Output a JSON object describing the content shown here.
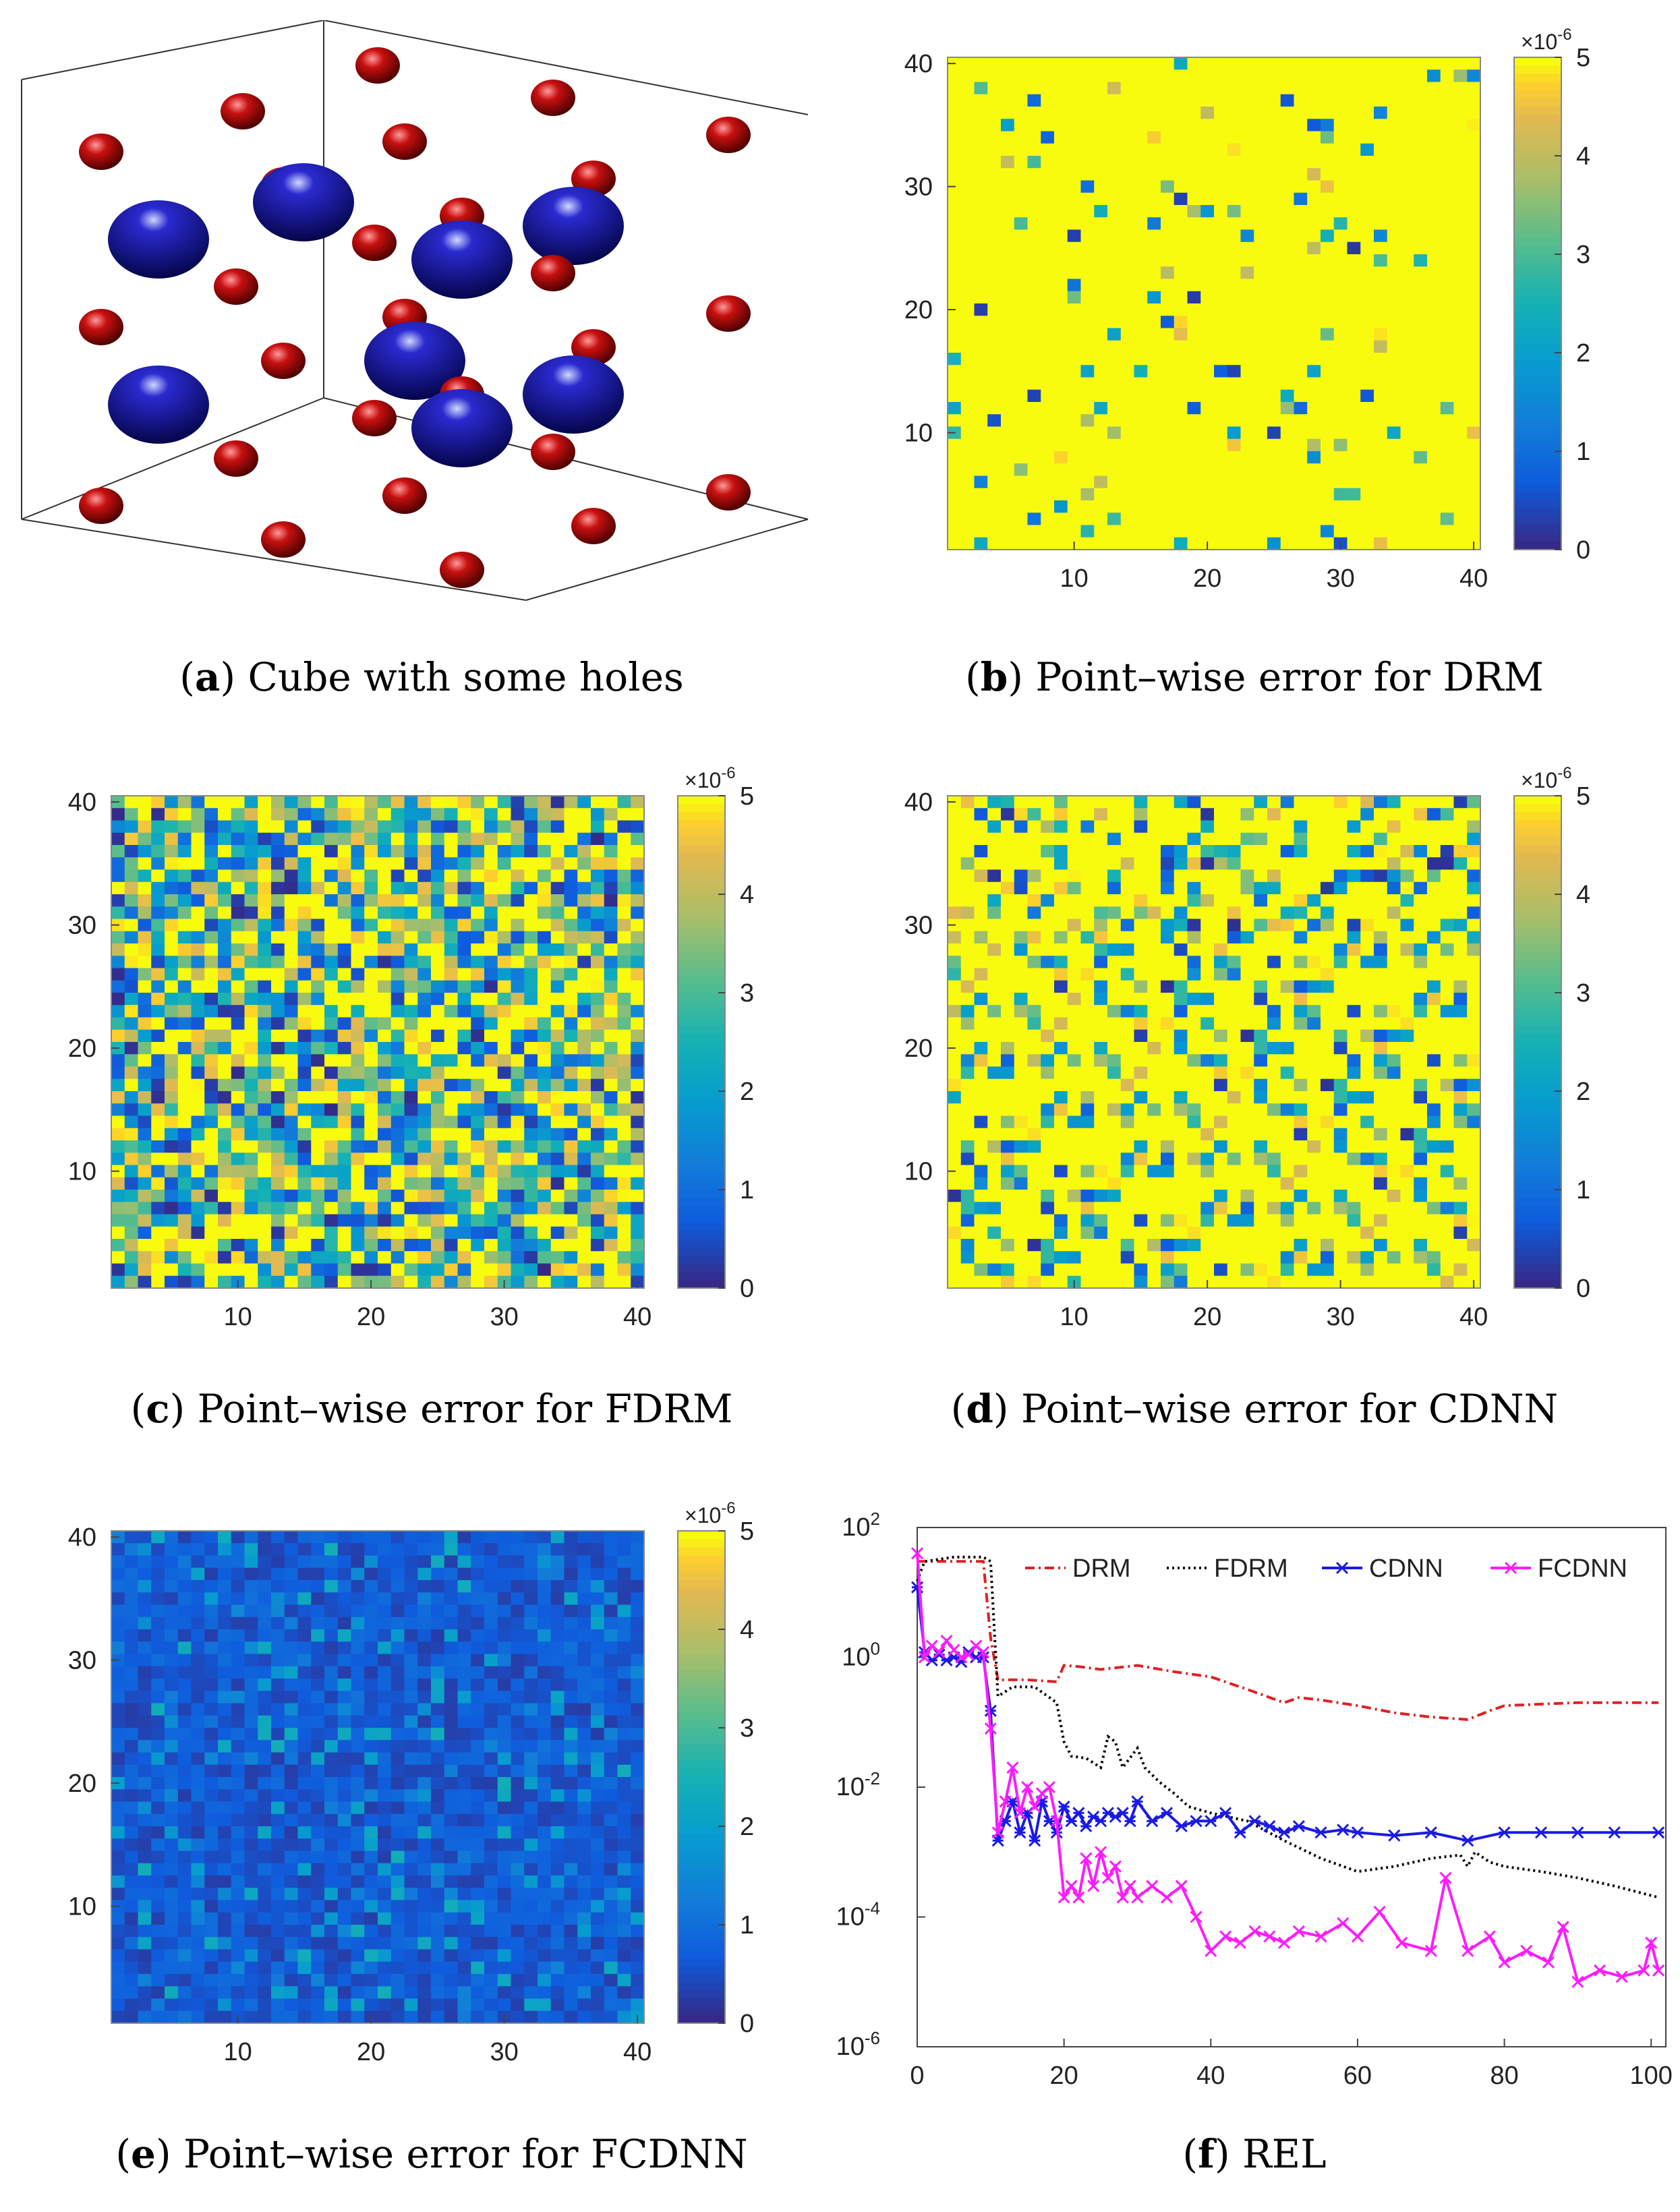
{
  "captions": {
    "a": {
      "letter": "a",
      "text": "Cube with some holes"
    },
    "b": {
      "letter": "b",
      "text": "Point–wise error for DRM"
    },
    "c": {
      "letter": "c",
      "text": "Point–wise error for FDRM"
    },
    "d": {
      "letter": "d",
      "text": "Point–wise error for CDNN"
    },
    "e": {
      "letter": "e",
      "text": "Point–wise error for FCDNN"
    },
    "f": {
      "letter": "f",
      "text": "REL"
    }
  },
  "colors": {
    "sphere_red": "#b00000",
    "sphere_blue": "#0a0a8c",
    "drm": "#e02020",
    "fdrm": "#000000",
    "cdnn": "#1a1ae6",
    "fcdnn": "#ff1aff"
  },
  "chart_data": [
    {
      "id": "a",
      "type": "other",
      "title": "Cube with some holes",
      "description_counts": {
        "red_spheres": 27,
        "blue_spheres": 8
      }
    },
    {
      "id": "b",
      "type": "heatmap",
      "title": "Point–wise error for DRM",
      "grid": [
        40,
        40
      ],
      "xlim": [
        0.5,
        40.5
      ],
      "ylim": [
        0.5,
        40.5
      ],
      "xticks": [
        "10",
        "20",
        "30",
        "40"
      ],
      "yticks": [
        "10",
        "20",
        "30",
        "40"
      ],
      "colorbar": {
        "ticks": [
          "0",
          "1",
          "2",
          "3",
          "4",
          "5"
        ],
        "exponent_label": "×10",
        "exponent": "-6",
        "range": [
          0,
          5
        ]
      },
      "fraction_saturated": 0.92
    },
    {
      "id": "c",
      "type": "heatmap",
      "title": "Point–wise error for FDRM",
      "grid": [
        40,
        40
      ],
      "xlim": [
        0.5,
        40.5
      ],
      "ylim": [
        0.5,
        40.5
      ],
      "xticks": [
        "10",
        "20",
        "30",
        "40"
      ],
      "yticks": [
        "10",
        "20",
        "30",
        "40"
      ],
      "colorbar": {
        "ticks": [
          "0",
          "1",
          "2",
          "3",
          "4",
          "5"
        ],
        "exponent_label": "×10",
        "exponent": "-6",
        "range": [
          0,
          5
        ]
      },
      "fraction_saturated": 0.25
    },
    {
      "id": "d",
      "type": "heatmap",
      "title": "Point–wise error for CDNN",
      "grid": [
        40,
        40
      ],
      "xlim": [
        0.5,
        40.5
      ],
      "ylim": [
        0.5,
        40.5
      ],
      "xticks": [
        "10",
        "20",
        "30",
        "40"
      ],
      "yticks": [
        "10",
        "20",
        "30",
        "40"
      ],
      "colorbar": {
        "ticks": [
          "0",
          "1",
          "2",
          "3",
          "4",
          "5"
        ],
        "exponent_label": "×10",
        "exponent": "-6",
        "range": [
          0,
          5
        ]
      },
      "fraction_saturated": 0.7
    },
    {
      "id": "e",
      "type": "heatmap",
      "title": "Point–wise error for FCDNN",
      "grid": [
        40,
        40
      ],
      "xlim": [
        0.5,
        40.5
      ],
      "ylim": [
        0.5,
        40.5
      ],
      "xticks": [
        "10",
        "20",
        "30",
        "40"
      ],
      "yticks": [
        "10",
        "20",
        "30",
        "40"
      ],
      "colorbar": {
        "ticks": [
          "0",
          "1",
          "2",
          "3",
          "4",
          "5"
        ],
        "exponent_label": "×10",
        "exponent": "-6",
        "range": [
          0,
          5
        ]
      },
      "fraction_saturated": 0.0
    },
    {
      "id": "f",
      "type": "line",
      "title": "REL",
      "yscale": "log",
      "xlim": [
        0,
        102
      ],
      "ylim_exp": [
        -6,
        2
      ],
      "xticks": [
        0,
        20,
        40,
        60,
        80,
        100
      ],
      "ytick_exponents": [
        -6,
        -4,
        -2,
        0,
        2
      ],
      "ytick_base": "10",
      "legend": {
        "placement": "top",
        "entries": [
          "DRM",
          "FDRM",
          "CDNN",
          "FCDNN"
        ]
      },
      "series": [
        {
          "name": "DRM",
          "x": [
            0,
            1,
            5,
            9,
            10,
            11,
            15,
            19,
            20,
            22,
            25,
            30,
            35,
            40,
            45,
            50,
            52,
            55,
            60,
            65,
            70,
            75,
            78,
            80,
            85,
            90,
            95,
            101
          ],
          "y": [
            30,
            30,
            30,
            30,
            2,
            0.45,
            0.45,
            0.42,
            0.75,
            0.72,
            0.65,
            0.75,
            0.6,
            0.5,
            0.32,
            0.2,
            0.24,
            0.22,
            0.18,
            0.14,
            0.12,
            0.11,
            0.15,
            0.18,
            0.19,
            0.2,
            0.2,
            0.2
          ]
        },
        {
          "name": "FDRM",
          "x": [
            0,
            1,
            5,
            9,
            10,
            11,
            13,
            16,
            19,
            20,
            21,
            23,
            25,
            26,
            27,
            28,
            30,
            31,
            33,
            35,
            37,
            40,
            45,
            50,
            55,
            60,
            65,
            70,
            74,
            75,
            76,
            78,
            80,
            85,
            90,
            95,
            101
          ],
          "y": [
            15,
            30,
            35,
            35,
            30,
            0.25,
            0.35,
            0.35,
            0.2,
            0.05,
            0.03,
            0.028,
            0.02,
            0.06,
            0.05,
            0.02,
            0.04,
            0.02,
            0.012,
            0.008,
            0.005,
            0.004,
            0.003,
            0.0015,
            0.0008,
            0.0005,
            0.0006,
            0.0008,
            0.0009,
            0.0006,
            0.001,
            0.0007,
            0.0006,
            0.0005,
            0.0004,
            0.0003,
            0.0002
          ]
        },
        {
          "name": "CDNN",
          "x": [
            0,
            1,
            2,
            3,
            4,
            5,
            6,
            7,
            8,
            9,
            10,
            11,
            12,
            13,
            14,
            15,
            16,
            17,
            18,
            19,
            20,
            21,
            22,
            23,
            24,
            25,
            26,
            27,
            28,
            29,
            30,
            32,
            34,
            36,
            38,
            40,
            42,
            44,
            46,
            48,
            50,
            52,
            55,
            58,
            60,
            65,
            70,
            75,
            80,
            85,
            90,
            95,
            101
          ],
          "y": [
            12,
            1.2,
            0.9,
            1.1,
            0.9,
            1.0,
            0.85,
            1.2,
            1.0,
            1.0,
            0.15,
            0.0015,
            0.003,
            0.006,
            0.002,
            0.004,
            0.0015,
            0.006,
            0.003,
            0.002,
            0.005,
            0.003,
            0.004,
            0.0025,
            0.0035,
            0.003,
            0.004,
            0.0035,
            0.004,
            0.003,
            0.006,
            0.003,
            0.004,
            0.0025,
            0.003,
            0.003,
            0.004,
            0.002,
            0.003,
            0.0025,
            0.002,
            0.0025,
            0.002,
            0.0022,
            0.002,
            0.0018,
            0.002,
            0.0015,
            0.002,
            0.002,
            0.002,
            0.002,
            0.002
          ]
        },
        {
          "name": "FCDNN",
          "x": [
            0,
            1,
            2,
            3,
            4,
            5,
            6,
            7,
            8,
            9,
            10,
            11,
            12,
            13,
            14,
            15,
            16,
            17,
            18,
            19,
            20,
            21,
            22,
            23,
            24,
            25,
            26,
            27,
            28,
            29,
            30,
            32,
            34,
            36,
            38,
            40,
            42,
            44,
            46,
            48,
            50,
            52,
            55,
            58,
            60,
            63,
            66,
            70,
            72,
            75,
            78,
            80,
            83,
            86,
            88,
            90,
            93,
            96,
            99,
            100,
            101
          ],
          "y": [
            40,
            1.0,
            1.5,
            1.2,
            1.8,
            1.3,
            1.0,
            1.1,
            1.5,
            1.2,
            0.08,
            0.002,
            0.006,
            0.02,
            0.004,
            0.01,
            0.005,
            0.008,
            0.01,
            0.003,
            0.0002,
            0.0003,
            0.0002,
            0.0008,
            0.0003,
            0.001,
            0.0004,
            0.0006,
            0.0002,
            0.0003,
            0.0002,
            0.0003,
            0.0002,
            0.0003,
            0.0001,
            3e-05,
            5e-05,
            4e-05,
            6e-05,
            5e-05,
            4e-05,
            6e-05,
            5e-05,
            8e-05,
            5e-05,
            0.00012,
            4e-05,
            3e-05,
            0.0004,
            3e-05,
            5e-05,
            2e-05,
            3e-05,
            2e-05,
            7e-05,
            1e-05,
            1.5e-05,
            1.2e-05,
            1.5e-05,
            4e-05,
            1.5e-05
          ]
        }
      ]
    }
  ]
}
